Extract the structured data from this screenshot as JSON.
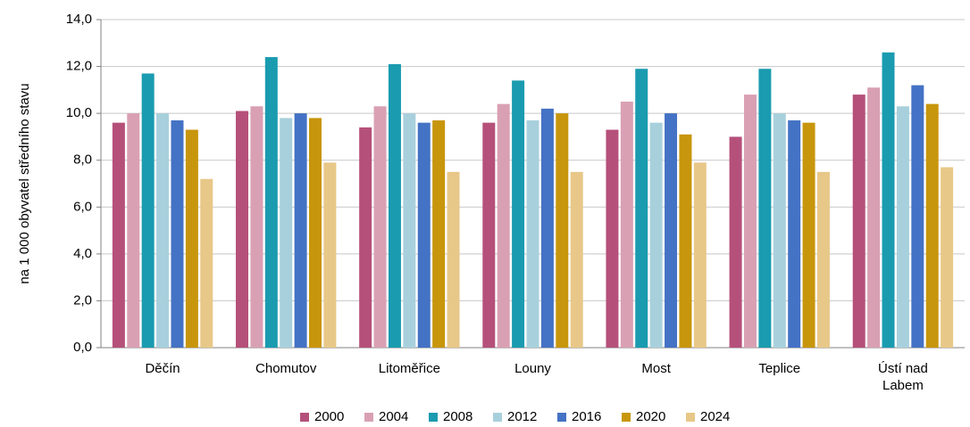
{
  "chart_data": {
    "type": "bar",
    "y_label": "na 1 000 obyvatel středního stavu",
    "categories": [
      "Děčín",
      "Chomutov",
      "Litoměřice",
      "Louny",
      "Most",
      "Teplice",
      "Ústí nad Labem"
    ],
    "series": [
      {
        "name": "2000",
        "color": "#b5507a",
        "values": [
          9.6,
          10.1,
          9.4,
          9.6,
          9.3,
          9.0,
          10.8
        ]
      },
      {
        "name": "2004",
        "color": "#d9a0b4",
        "values": [
          10.0,
          10.3,
          10.3,
          10.4,
          10.5,
          10.8,
          11.1
        ]
      },
      {
        "name": "2008",
        "color": "#1a9bb0",
        "values": [
          11.7,
          12.4,
          12.1,
          11.4,
          11.9,
          11.9,
          12.6
        ]
      },
      {
        "name": "2012",
        "color": "#a8d0dc",
        "values": [
          10.0,
          9.8,
          10.0,
          9.7,
          9.6,
          10.0,
          10.3
        ]
      },
      {
        "name": "2016",
        "color": "#4472c4",
        "values": [
          9.7,
          10.0,
          9.6,
          10.2,
          10.0,
          9.7,
          11.2
        ]
      },
      {
        "name": "2020",
        "color": "#c8960c",
        "values": [
          9.3,
          9.8,
          9.7,
          10.0,
          9.1,
          9.6,
          10.4
        ]
      },
      {
        "name": "2024",
        "color": "#e8c888",
        "values": [
          7.2,
          7.9,
          7.5,
          7.5,
          7.9,
          7.5,
          7.7
        ]
      }
    ],
    "ylim": [
      0,
      14
    ],
    "yticks": [
      {
        "value": 0,
        "label": "0,0"
      },
      {
        "value": 2,
        "label": "2,0"
      },
      {
        "value": 4,
        "label": "4,0"
      },
      {
        "value": 6,
        "label": "6,0"
      },
      {
        "value": 8,
        "label": "8,0"
      },
      {
        "value": 10,
        "label": "10,0"
      },
      {
        "value": 12,
        "label": "12,0"
      },
      {
        "value": 14,
        "label": "14,0"
      }
    ],
    "grid": true
  }
}
